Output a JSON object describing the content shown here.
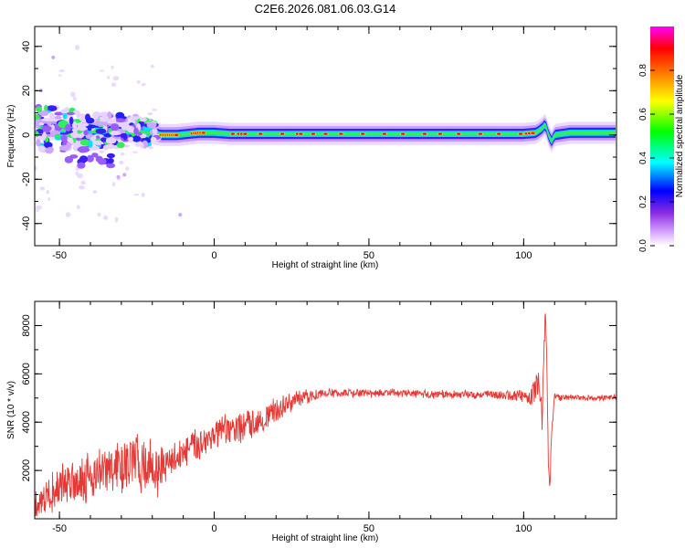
{
  "chart_data": [
    {
      "type": "heatmap",
      "title": "C2E6.2026.081.06.03.G14",
      "xlabel": "Height of straight line (km)",
      "ylabel": "Frequency (Hz)",
      "xlim": [
        -58,
        130
      ],
      "ylim": [
        -50,
        49
      ],
      "x_ticks": [
        -50,
        0,
        50,
        100
      ],
      "y_ticks": [
        -40,
        -20,
        0,
        20,
        40
      ],
      "grid": false,
      "colorbar": {
        "label": "Normalized spectral amplitude",
        "range": [
          0,
          1
        ],
        "ticks": [
          "0.0",
          "0.2",
          "0.4",
          "0.6",
          "0.8"
        ],
        "colors": [
          "#ffffff",
          "#d8a8ff",
          "#8a2be2",
          "#0000ff",
          "#00ffff",
          "#00ff00",
          "#ffff00",
          "#ff8000",
          "#ff0000",
          "#ff00ff"
        ]
      },
      "ridge": {
        "x": [
          -58,
          -50,
          -40,
          -30,
          -25,
          -20,
          -17,
          -12,
          -5,
          0,
          5,
          10,
          20,
          30,
          40,
          50,
          60,
          70,
          80,
          90,
          95,
          100,
          104,
          106,
          107,
          108,
          109,
          110,
          115,
          120,
          130
        ],
        "y": [
          3,
          2.5,
          2,
          1.5,
          1.5,
          1,
          0,
          0,
          1,
          1,
          0.5,
          0.5,
          0.5,
          0.5,
          0.5,
          0.5,
          0.5,
          0.5,
          0.5,
          0.5,
          0.5,
          0.5,
          1,
          3,
          5,
          0,
          -3,
          0,
          1,
          1,
          1
        ]
      }
    },
    {
      "type": "line",
      "xlabel": "Height of straight line (km)",
      "ylabel": "SNR (10 * v/v)",
      "xlim": [
        -58,
        130
      ],
      "ylim": [
        0,
        9000
      ],
      "x_ticks": [
        -50,
        0,
        50,
        100
      ],
      "y_ticks": [
        2000,
        4000,
        6000,
        8000
      ],
      "grid": false,
      "line_color": "#e53935",
      "series": [
        {
          "x": [
            -58,
            -55,
            -52,
            -50,
            -47,
            -44,
            -40,
            -36,
            -32,
            -28,
            -25,
            -22,
            -19,
            -16,
            -14,
            -10,
            -6,
            -2,
            2,
            6,
            10,
            14,
            18,
            22,
            26,
            30,
            33,
            36,
            40,
            50,
            60,
            70,
            80,
            90,
            95,
            100,
            102,
            104,
            105,
            106,
            107,
            107.5,
            108,
            108.5,
            109,
            110,
            112,
            115,
            120,
            125,
            130
          ],
          "y": [
            500,
            900,
            1100,
            1300,
            1550,
            1650,
            1800,
            1950,
            2050,
            2250,
            2400,
            2200,
            2050,
            2100,
            2400,
            2750,
            3050,
            3350,
            3550,
            3700,
            3850,
            4050,
            4300,
            4650,
            4900,
            5050,
            5150,
            5200,
            5200,
            5200,
            5200,
            5150,
            5150,
            5150,
            5100,
            5100,
            5000,
            5400,
            5700,
            4200,
            8700,
            6500,
            2200,
            1400,
            3500,
            5100,
            5000,
            5050,
            5000,
            5000,
            5050
          ],
          "amp": [
            600,
            800,
            900,
            1000,
            1100,
            1150,
            1200,
            1200,
            1250,
            1300,
            1400,
            1400,
            1300,
            900,
            700,
            800,
            800,
            800,
            800,
            750,
            700,
            700,
            650,
            500,
            400,
            350,
            250,
            200,
            200,
            200,
            200,
            200,
            200,
            200,
            250,
            300,
            400,
            600,
            600,
            600,
            300,
            300,
            300,
            300,
            400,
            150,
            150,
            130,
            130,
            130,
            130
          ]
        }
      ]
    }
  ]
}
